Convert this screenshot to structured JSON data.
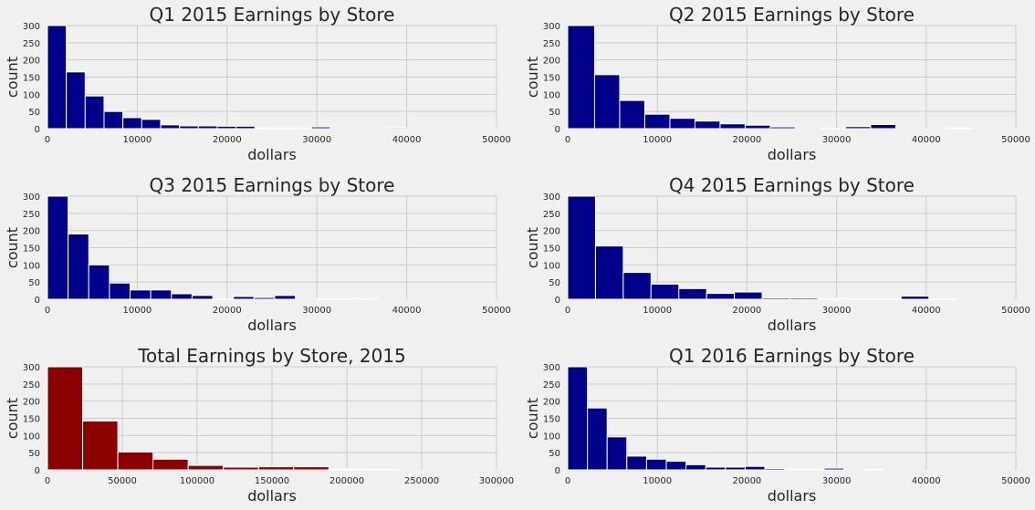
{
  "chart_data": [
    {
      "type": "bar",
      "title": "Q1 2015 Earnings by Store",
      "xlabel": "dollars",
      "ylabel": "count",
      "xlim": [
        0,
        50000
      ],
      "ylim": [
        0,
        300
      ],
      "xticks": [
        0,
        10000,
        20000,
        30000,
        40000,
        50000
      ],
      "yticks": [
        0,
        50,
        100,
        150,
        200,
        250,
        300
      ],
      "color": "#00008b",
      "bin_edges": [
        0,
        2100,
        4200,
        6300,
        8400,
        10500,
        12600,
        14700,
        16800,
        18900,
        21000,
        23100,
        25200,
        27300,
        29400,
        31500,
        33600,
        35700,
        37800,
        39900
      ],
      "values": [
        300,
        165,
        95,
        50,
        32,
        27,
        11,
        8,
        8,
        7,
        7,
        2,
        1,
        1,
        5,
        0,
        0,
        0,
        3
      ]
    },
    {
      "type": "bar",
      "title": "Q2 2015 Earnings by Store",
      "xlabel": "dollars",
      "ylabel": "count",
      "xlim": [
        0,
        50000
      ],
      "ylim": [
        0,
        300
      ],
      "xticks": [
        0,
        10000,
        20000,
        30000,
        40000,
        50000
      ],
      "yticks": [
        0,
        50,
        100,
        150,
        200,
        250,
        300
      ],
      "color": "#00008b",
      "bin_edges": [
        0,
        3000,
        5800,
        8600,
        11400,
        14200,
        17000,
        19800,
        22600,
        25400,
        28200,
        31000,
        33800,
        36600,
        39400,
        42200,
        45000
      ],
      "values": [
        300,
        157,
        82,
        42,
        30,
        22,
        14,
        10,
        5,
        0,
        1,
        6,
        12,
        0,
        0,
        2
      ]
    },
    {
      "type": "bar",
      "title": "Q3 2015 Earnings by Store",
      "xlabel": "dollars",
      "ylabel": "count",
      "xlim": [
        0,
        50000
      ],
      "ylim": [
        0,
        300
      ],
      "xticks": [
        0,
        10000,
        20000,
        30000,
        40000,
        50000
      ],
      "yticks": [
        0,
        50,
        100,
        150,
        200,
        250,
        300
      ],
      "color": "#00008b",
      "bin_edges": [
        0,
        2300,
        4600,
        6900,
        9200,
        11500,
        13800,
        16100,
        18400,
        20700,
        23000,
        25300,
        27600,
        29900,
        32200,
        34500,
        36800
      ],
      "values": [
        300,
        190,
        100,
        47,
        27,
        27,
        16,
        11,
        1,
        8,
        5,
        11,
        0,
        2,
        2,
        2
      ]
    },
    {
      "type": "bar",
      "title": "Q4 2015 Earnings by Store",
      "xlabel": "dollars",
      "ylabel": "count",
      "xlim": [
        0,
        50000
      ],
      "ylim": [
        0,
        300
      ],
      "xticks": [
        0,
        10000,
        20000,
        30000,
        40000,
        50000
      ],
      "yticks": [
        0,
        50,
        100,
        150,
        200,
        250,
        300
      ],
      "color": "#00008b",
      "bin_edges": [
        0,
        3100,
        6200,
        9300,
        12400,
        15500,
        18600,
        21700,
        24800,
        27900,
        31000,
        34100,
        37200,
        40300,
        43400
      ],
      "values": [
        300,
        155,
        78,
        44,
        31,
        17,
        21,
        4,
        4,
        2,
        2,
        2,
        9,
        1
      ]
    },
    {
      "type": "bar",
      "title": "Total Earnings by Store, 2015",
      "xlabel": "dollars",
      "ylabel": "count",
      "xlim": [
        0,
        300000
      ],
      "ylim": [
        0,
        300
      ],
      "xticks": [
        0,
        50000,
        100000,
        150000,
        200000,
        250000,
        300000
      ],
      "yticks": [
        0,
        50,
        100,
        150,
        200,
        250,
        300
      ],
      "color": "#8b0000",
      "bin_edges": [
        0,
        23500,
        47000,
        70500,
        94000,
        117500,
        141000,
        164500,
        188000,
        211500,
        235000
      ],
      "values": [
        300,
        142,
        52,
        31,
        13,
        8,
        9,
        9,
        2,
        1
      ]
    },
    {
      "type": "bar",
      "title": "Q1 2016 Earnings by Store",
      "xlabel": "dollars",
      "ylabel": "count",
      "xlim": [
        0,
        50000
      ],
      "ylim": [
        0,
        300
      ],
      "xticks": [
        0,
        10000,
        20000,
        30000,
        40000,
        50000
      ],
      "yticks": [
        0,
        50,
        100,
        150,
        200,
        250,
        300
      ],
      "color": "#00008b",
      "bin_edges": [
        0,
        2200,
        4400,
        6600,
        8800,
        11000,
        13200,
        15400,
        17600,
        19800,
        22000,
        24200,
        26400,
        28600,
        30800,
        33000,
        35200
      ],
      "values": [
        300,
        180,
        96,
        40,
        31,
        25,
        15,
        8,
        8,
        10,
        4,
        2,
        2,
        5,
        0,
        1
      ]
    }
  ]
}
